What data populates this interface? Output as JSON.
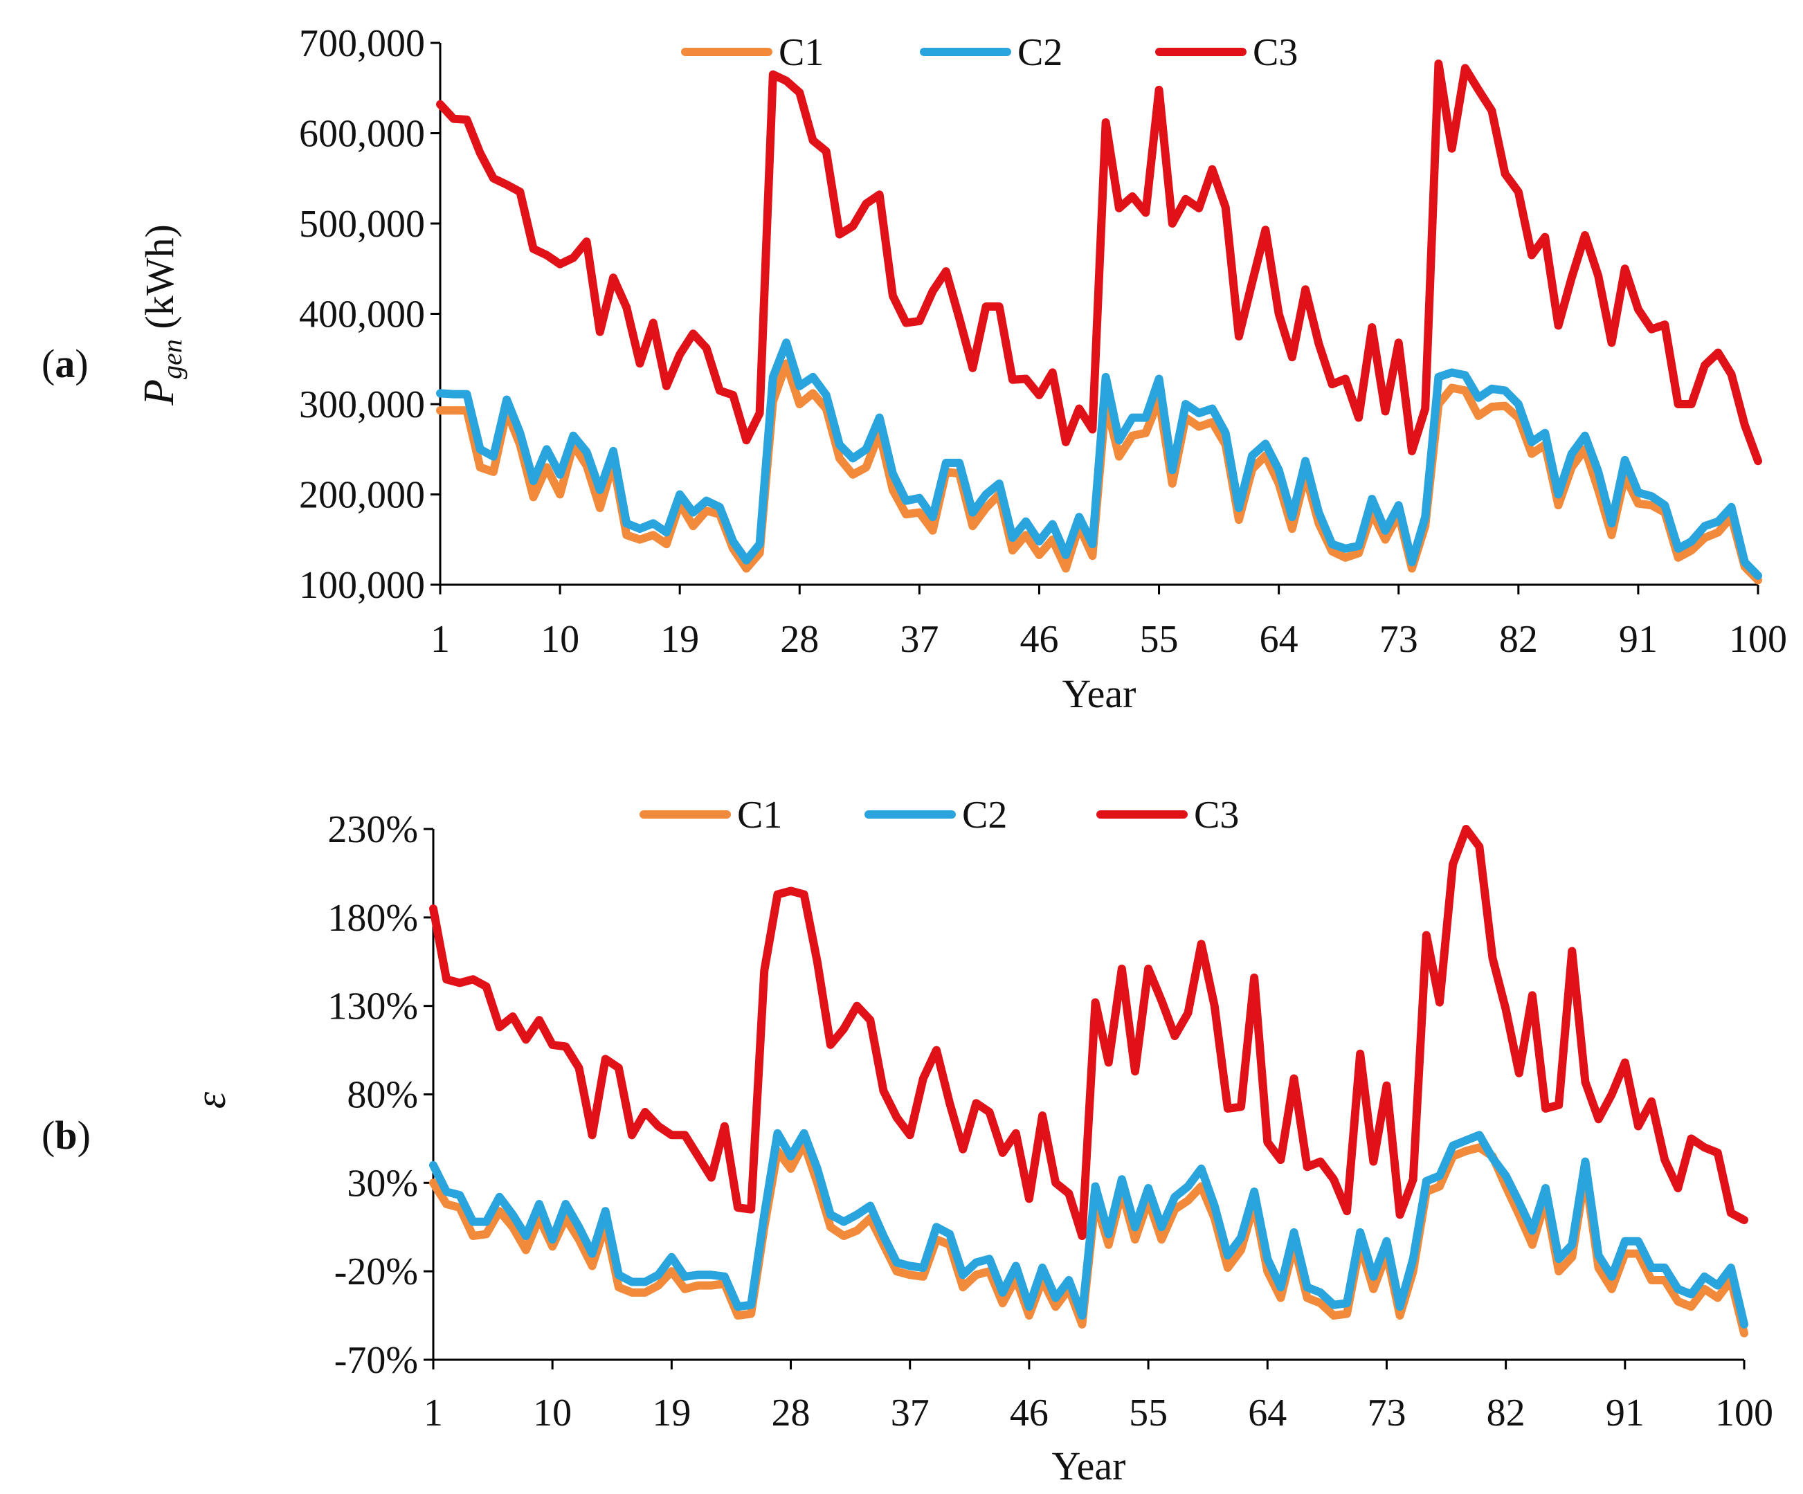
{
  "chart_data": [
    {
      "type": "line",
      "panel_label": "a",
      "title": "",
      "xlabel": "Year",
      "ylabel_main": "P",
      "ylabel_sub": "gen",
      "ylabel_unit": " (kWh)",
      "xlim": [
        1,
        100
      ],
      "ylim": [
        100000,
        700000
      ],
      "x_ticks": [
        "1",
        "10",
        "19",
        "28",
        "37",
        "46",
        "55",
        "64",
        "73",
        "82",
        "91",
        "100"
      ],
      "y_ticks": [
        {
          "v": 100000,
          "label": "100,000"
        },
        {
          "v": 200000,
          "label": "200,000"
        },
        {
          "v": 300000,
          "label": "300,000"
        },
        {
          "v": 400000,
          "label": "400,000"
        },
        {
          "v": 500000,
          "label": "500,000"
        },
        {
          "v": 600000,
          "label": "600,000"
        },
        {
          "v": 700000,
          "label": "700,000"
        }
      ],
      "legend_position": "top",
      "series": [
        {
          "name": "C1",
          "color": "#f28a3c",
          "values": [
            293000,
            293000,
            293000,
            230000,
            225000,
            292000,
            255000,
            197000,
            230000,
            200000,
            255000,
            232000,
            185000,
            235000,
            155000,
            150000,
            155000,
            145000,
            190000,
            165000,
            182000,
            178000,
            140000,
            118000,
            135000,
            303000,
            345000,
            300000,
            312000,
            295000,
            240000,
            222000,
            230000,
            268000,
            205000,
            178000,
            180000,
            160000,
            225000,
            223000,
            165000,
            185000,
            200000,
            138000,
            155000,
            133000,
            150000,
            118000,
            165000,
            132000,
            302000,
            242000,
            265000,
            268000,
            305000,
            212000,
            285000,
            275000,
            280000,
            255000,
            172000,
            228000,
            243000,
            212000,
            162000,
            222000,
            168000,
            137000,
            130000,
            135000,
            180000,
            150000,
            178000,
            118000,
            165000,
            300000,
            318000,
            315000,
            287000,
            297000,
            298000,
            285000,
            245000,
            255000,
            188000,
            230000,
            250000,
            205000,
            155000,
            220000,
            190000,
            188000,
            180000,
            130000,
            138000,
            152000,
            158000,
            175000,
            120000,
            105000
          ]
        },
        {
          "name": "C2",
          "color": "#29a4dc",
          "values": [
            312000,
            311000,
            311000,
            250000,
            242000,
            305000,
            268000,
            215000,
            250000,
            222000,
            265000,
            247000,
            205000,
            248000,
            168000,
            162000,
            168000,
            158000,
            200000,
            180000,
            193000,
            186000,
            148000,
            127000,
            145000,
            330000,
            368000,
            320000,
            330000,
            310000,
            255000,
            240000,
            250000,
            285000,
            223000,
            193000,
            196000,
            175000,
            235000,
            235000,
            180000,
            200000,
            212000,
            152000,
            170000,
            148000,
            167000,
            133000,
            175000,
            145000,
            330000,
            260000,
            285000,
            285000,
            328000,
            227000,
            300000,
            290000,
            295000,
            268000,
            185000,
            243000,
            256000,
            227000,
            175000,
            237000,
            180000,
            145000,
            140000,
            143000,
            195000,
            160000,
            188000,
            125000,
            175000,
            330000,
            335000,
            332000,
            307000,
            317000,
            315000,
            300000,
            258000,
            268000,
            200000,
            245000,
            265000,
            225000,
            168000,
            238000,
            202000,
            198000,
            188000,
            140000,
            148000,
            165000,
            170000,
            186000,
            125000,
            110000
          ]
        },
        {
          "name": "C3",
          "color": "#e01218",
          "values": [
            632000,
            616000,
            615000,
            578000,
            550000,
            543000,
            535000,
            472000,
            465000,
            455000,
            462000,
            480000,
            380000,
            440000,
            407000,
            345000,
            390000,
            320000,
            355000,
            378000,
            362000,
            315000,
            310000,
            260000,
            290000,
            665000,
            658000,
            645000,
            592000,
            580000,
            488000,
            497000,
            522000,
            532000,
            420000,
            390000,
            392000,
            425000,
            447000,
            395000,
            340000,
            408000,
            408000,
            327000,
            328000,
            310000,
            335000,
            258000,
            295000,
            272000,
            612000,
            517000,
            530000,
            512000,
            648000,
            500000,
            527000,
            517000,
            560000,
            518000,
            375000,
            435000,
            493000,
            400000,
            352000,
            427000,
            367000,
            322000,
            328000,
            285000,
            385000,
            292000,
            368000,
            248000,
            295000,
            677000,
            583000,
            672000,
            648000,
            625000,
            555000,
            535000,
            465000,
            485000,
            387000,
            440000,
            487000,
            442000,
            368000,
            450000,
            405000,
            383000,
            388000,
            300000,
            300000,
            343000,
            357000,
            333000,
            277000,
            237000
          ]
        }
      ]
    },
    {
      "type": "line",
      "panel_label": "b",
      "title": "",
      "xlabel": "Year",
      "ylabel_main": "ε",
      "xlim": [
        1,
        100
      ],
      "ylim": [
        -70,
        230
      ],
      "x_ticks": [
        "1",
        "10",
        "19",
        "28",
        "37",
        "46",
        "55",
        "64",
        "73",
        "82",
        "91",
        "100"
      ],
      "y_ticks": [
        {
          "v": -70,
          "label": "-70%"
        },
        {
          "v": -20,
          "label": "-20%"
        },
        {
          "v": 30,
          "label": "30%"
        },
        {
          "v": 80,
          "label": "80%"
        },
        {
          "v": 130,
          "label": "130%"
        },
        {
          "v": 180,
          "label": "180%"
        },
        {
          "v": 230,
          "label": "230%"
        }
      ],
      "legend_position": "top",
      "series": [
        {
          "name": "C1",
          "color": "#f28a3c",
          "values": [
            30,
            18,
            16,
            0,
            1,
            14,
            5,
            -8,
            10,
            -6,
            10,
            -2,
            -17,
            6,
            -29,
            -32,
            -32,
            -28,
            -20,
            -30,
            -28,
            -28,
            -27,
            -45,
            -44,
            5,
            48,
            38,
            52,
            30,
            5,
            0,
            3,
            10,
            -5,
            -20,
            -22,
            -23,
            -2,
            -5,
            -29,
            -22,
            -20,
            -38,
            -24,
            -45,
            -25,
            -40,
            -30,
            -50,
            20,
            -5,
            25,
            -2,
            20,
            -2,
            15,
            20,
            28,
            10,
            -18,
            -8,
            18,
            -20,
            -35,
            -5,
            -35,
            -38,
            -45,
            -44,
            -5,
            -30,
            -10,
            -45,
            -20,
            25,
            28,
            45,
            48,
            50,
            45,
            28,
            12,
            -5,
            20,
            -20,
            -12,
            35,
            -18,
            -30,
            -10,
            -10,
            -25,
            -25,
            -37,
            -40,
            -30,
            -35,
            -25,
            -55
          ]
        },
        {
          "name": "C2",
          "color": "#29a4dc",
          "values": [
            40,
            25,
            23,
            8,
            8,
            22,
            12,
            0,
            18,
            -2,
            18,
            5,
            -10,
            14,
            -22,
            -26,
            -26,
            -22,
            -12,
            -23,
            -22,
            -22,
            -23,
            -40,
            -39,
            12,
            58,
            45,
            58,
            38,
            12,
            8,
            12,
            17,
            0,
            -15,
            -17,
            -18,
            5,
            1,
            -22,
            -15,
            -13,
            -32,
            -17,
            -40,
            -18,
            -35,
            -25,
            -45,
            28,
            1,
            32,
            5,
            27,
            5,
            22,
            28,
            38,
            17,
            -11,
            -1,
            25,
            -13,
            -29,
            2,
            -29,
            -32,
            -39,
            -38,
            2,
            -23,
            -3,
            -40,
            -13,
            31,
            34,
            51,
            54,
            57,
            44,
            34,
            19,
            3,
            27,
            -13,
            -5,
            42,
            -11,
            -23,
            -3,
            -3,
            -18,
            -18,
            -30,
            -33,
            -23,
            -28,
            -18,
            -50
          ]
        },
        {
          "name": "C3",
          "color": "#e01218",
          "values": [
            185,
            145,
            143,
            145,
            141,
            118,
            124,
            111,
            122,
            108,
            107,
            95,
            57,
            100,
            95,
            57,
            70,
            62,
            57,
            57,
            45,
            33,
            62,
            16,
            15,
            150,
            193,
            195,
            193,
            155,
            108,
            117,
            130,
            122,
            82,
            67,
            57,
            89,
            105,
            75,
            49,
            75,
            70,
            47,
            58,
            21,
            68,
            30,
            24,
            0,
            132,
            98,
            151,
            93,
            151,
            133,
            113,
            126,
            165,
            130,
            72,
            73,
            146,
            53,
            43,
            89,
            39,
            42,
            32,
            14,
            103,
            42,
            85,
            12,
            32,
            170,
            132,
            210,
            230,
            220,
            157,
            128,
            92,
            136,
            72,
            74,
            161,
            87,
            66,
            80,
            98,
            62,
            76,
            43,
            27,
            55,
            50,
            47,
            13,
            9
          ]
        }
      ]
    }
  ]
}
